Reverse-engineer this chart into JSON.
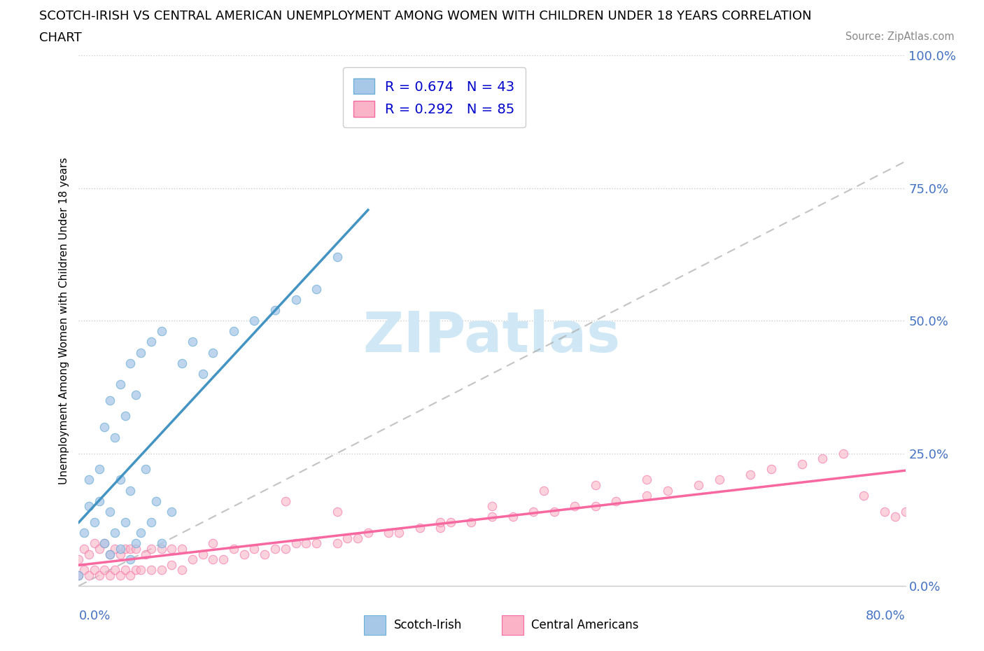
{
  "title_line1": "SCOTCH-IRISH VS CENTRAL AMERICAN UNEMPLOYMENT AMONG WOMEN WITH CHILDREN UNDER 18 YEARS CORRELATION",
  "title_line2": "CHART",
  "source": "Source: ZipAtlas.com",
  "xlabel_bottom_left": "0.0%",
  "xlabel_bottom_right": "80.0%",
  "ylabel": "Unemployment Among Women with Children Under 18 years",
  "legend_label1": "Scotch-Irish",
  "legend_label2": "Central Americans",
  "R1": 0.674,
  "N1": 43,
  "R2": 0.292,
  "N2": 85,
  "xmin": 0.0,
  "xmax": 0.8,
  "ymin": 0.0,
  "ymax": 1.0,
  "yticks": [
    0.0,
    0.25,
    0.5,
    0.75,
    1.0
  ],
  "ytick_labels": [
    "0.0%",
    "25.0%",
    "50.0%",
    "75.0%",
    "100.0%"
  ],
  "color_blue_fill": "#a8c8e8",
  "color_blue_edge": "#6baed6",
  "color_blue_line": "#4393c3",
  "color_pink_fill": "#fbb4c7",
  "color_pink_edge": "#f768a1",
  "color_pink_line": "#f768a1",
  "color_gray_diag": "#aaaaaa",
  "background": "#ffffff",
  "watermark_color": "#d0e8f5",
  "scotch_irish_x": [
    0.0,
    0.005,
    0.01,
    0.01,
    0.015,
    0.02,
    0.02,
    0.025,
    0.025,
    0.03,
    0.03,
    0.03,
    0.035,
    0.035,
    0.04,
    0.04,
    0.04,
    0.045,
    0.045,
    0.05,
    0.05,
    0.05,
    0.055,
    0.055,
    0.06,
    0.06,
    0.065,
    0.07,
    0.07,
    0.075,
    0.08,
    0.08,
    0.09,
    0.1,
    0.11,
    0.12,
    0.13,
    0.15,
    0.17,
    0.19,
    0.21,
    0.23,
    0.25
  ],
  "scotch_irish_y": [
    0.02,
    0.1,
    0.15,
    0.2,
    0.12,
    0.16,
    0.22,
    0.08,
    0.3,
    0.06,
    0.14,
    0.35,
    0.1,
    0.28,
    0.07,
    0.2,
    0.38,
    0.12,
    0.32,
    0.05,
    0.18,
    0.42,
    0.08,
    0.36,
    0.1,
    0.44,
    0.22,
    0.12,
    0.46,
    0.16,
    0.08,
    0.48,
    0.14,
    0.42,
    0.46,
    0.4,
    0.44,
    0.48,
    0.5,
    0.52,
    0.54,
    0.56,
    0.62
  ],
  "central_am_x": [
    0.0,
    0.0,
    0.005,
    0.005,
    0.01,
    0.01,
    0.015,
    0.015,
    0.02,
    0.02,
    0.025,
    0.025,
    0.03,
    0.03,
    0.035,
    0.035,
    0.04,
    0.04,
    0.045,
    0.045,
    0.05,
    0.05,
    0.055,
    0.055,
    0.06,
    0.065,
    0.07,
    0.07,
    0.08,
    0.08,
    0.09,
    0.09,
    0.1,
    0.1,
    0.11,
    0.12,
    0.13,
    0.13,
    0.14,
    0.15,
    0.16,
    0.17,
    0.18,
    0.19,
    0.2,
    0.21,
    0.22,
    0.23,
    0.25,
    0.26,
    0.27,
    0.28,
    0.3,
    0.31,
    0.33,
    0.35,
    0.36,
    0.38,
    0.4,
    0.42,
    0.44,
    0.46,
    0.48,
    0.5,
    0.52,
    0.55,
    0.57,
    0.6,
    0.62,
    0.65,
    0.67,
    0.7,
    0.72,
    0.74,
    0.76,
    0.78,
    0.79,
    0.8,
    0.35,
    0.2,
    0.25,
    0.4,
    0.45,
    0.5,
    0.55
  ],
  "central_am_y": [
    0.02,
    0.05,
    0.03,
    0.07,
    0.02,
    0.06,
    0.03,
    0.08,
    0.02,
    0.07,
    0.03,
    0.08,
    0.02,
    0.06,
    0.03,
    0.07,
    0.02,
    0.06,
    0.03,
    0.07,
    0.02,
    0.07,
    0.03,
    0.07,
    0.03,
    0.06,
    0.03,
    0.07,
    0.03,
    0.07,
    0.04,
    0.07,
    0.03,
    0.07,
    0.05,
    0.06,
    0.05,
    0.08,
    0.05,
    0.07,
    0.06,
    0.07,
    0.06,
    0.07,
    0.07,
    0.08,
    0.08,
    0.08,
    0.08,
    0.09,
    0.09,
    0.1,
    0.1,
    0.1,
    0.11,
    0.11,
    0.12,
    0.12,
    0.13,
    0.13,
    0.14,
    0.14,
    0.15,
    0.15,
    0.16,
    0.17,
    0.18,
    0.19,
    0.2,
    0.21,
    0.22,
    0.23,
    0.24,
    0.25,
    0.17,
    0.14,
    0.13,
    0.14,
    0.12,
    0.16,
    0.14,
    0.15,
    0.18,
    0.19,
    0.2
  ]
}
